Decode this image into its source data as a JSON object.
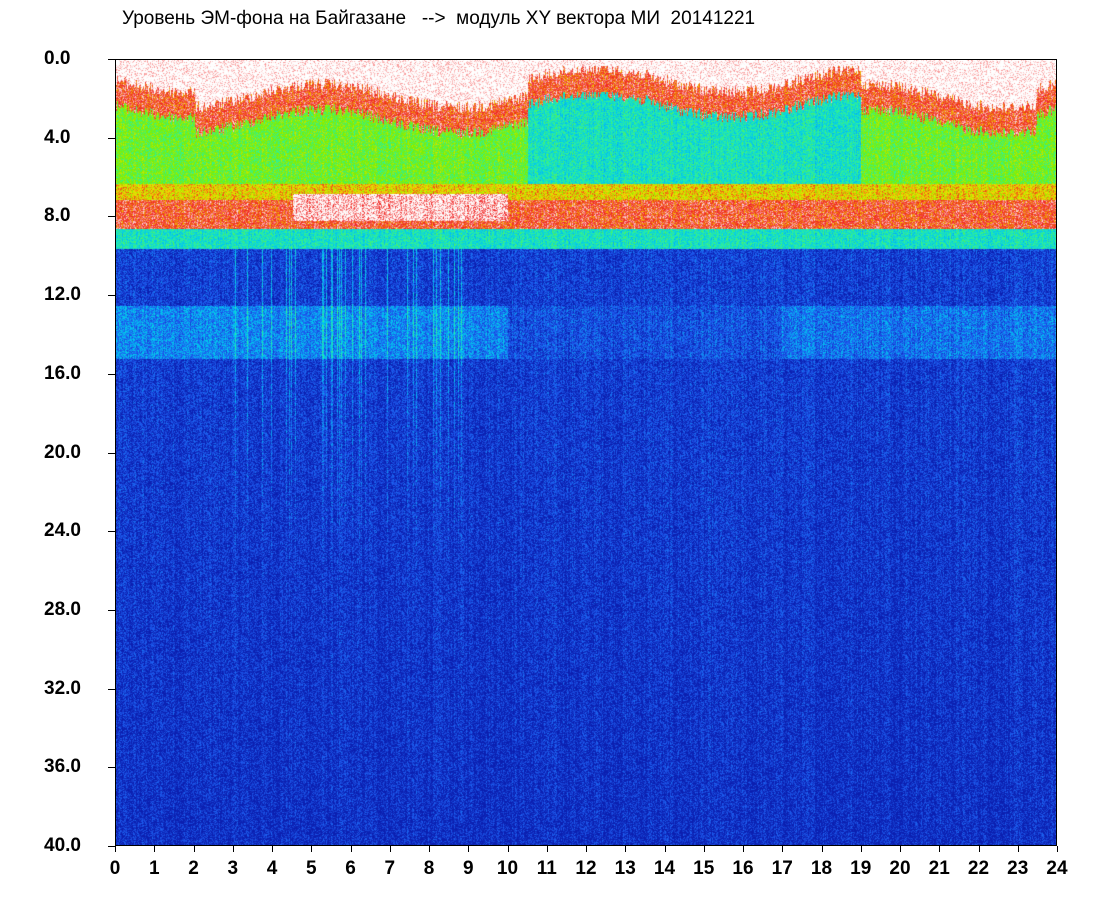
{
  "chart_data": {
    "type": "heatmap",
    "title": "Уровень ЭМ-фона на Байгазане   -->  модуль XY вектора МИ  20141221",
    "xlabel": "",
    "ylabel": "",
    "xlim": [
      0,
      24
    ],
    "ylim": [
      0,
      40
    ],
    "y_inverted": true,
    "x_ticks": [
      "0",
      "1",
      "2",
      "3",
      "4",
      "5",
      "6",
      "7",
      "8",
      "9",
      "10",
      "11",
      "12",
      "13",
      "14",
      "15",
      "16",
      "17",
      "18",
      "19",
      "20",
      "21",
      "22",
      "23",
      "24"
    ],
    "y_ticks": [
      "0.0",
      "4.0",
      "8.0",
      "12.0",
      "16.0",
      "20.0",
      "24.0",
      "28.0",
      "32.0",
      "36.0",
      "40.0"
    ],
    "colormap": [
      "#0b1fb0",
      "#1e5cf0",
      "#00c8f0",
      "#2cf0a0",
      "#7cf000",
      "#f0e000",
      "#f02020",
      "#ffffff"
    ],
    "bands": [
      {
        "hour_from": 0,
        "hour_to": 24,
        "y_from": 0.5,
        "y_to": 2.0,
        "level": "red"
      },
      {
        "hour_from": 0,
        "hour_to": 24,
        "y_from": 2.0,
        "y_to": 6.5,
        "level": "cyan-green"
      },
      {
        "hour_from": 0,
        "hour_to": 24,
        "y_from": 6.5,
        "y_to": 8.5,
        "level": "red"
      },
      {
        "hour_from": 5,
        "hour_to": 10,
        "y_from": 6.8,
        "y_to": 8.0,
        "level": "white"
      },
      {
        "hour_from": 0,
        "hour_to": 24,
        "y_from": 8.5,
        "y_to": 9.5,
        "level": "cyan"
      },
      {
        "hour_from": 0,
        "hour_to": 24,
        "y_from": 9.5,
        "y_to": 40,
        "level": "blue"
      },
      {
        "hour_from": 0,
        "hour_to": 10,
        "y_from": 12.5,
        "y_to": 15.0,
        "level": "light-blue"
      },
      {
        "hour_from": 17,
        "hour_to": 24,
        "y_from": 12.5,
        "y_to": 15.0,
        "level": "light-blue"
      }
    ]
  }
}
